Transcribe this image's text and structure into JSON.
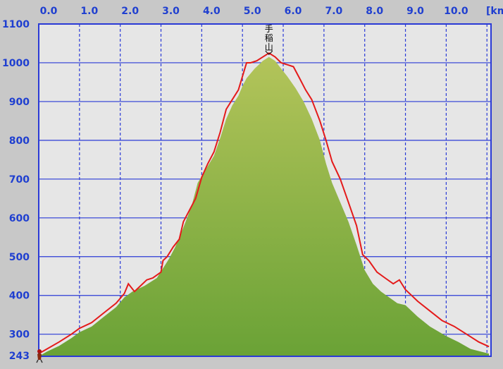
{
  "chart_data": {
    "type": "area",
    "x_unit_label": "[km",
    "xlim": [
      0,
      11.1
    ],
    "ylim": [
      243,
      1100
    ],
    "x_ticks": [
      0.0,
      1.0,
      2.0,
      3.0,
      4.0,
      5.0,
      6.0,
      7.0,
      8.0,
      9.0,
      10.0
    ],
    "x_tick_labels": [
      "0.0",
      "1.0",
      "2.0",
      "3.0",
      "4.0",
      "5.0",
      "6.0",
      "7.0",
      "8.0",
      "9.0",
      "10.0"
    ],
    "y_ticks": [
      1100,
      1000,
      900,
      800,
      700,
      600,
      500,
      400,
      300
    ],
    "y_tick_labels": [
      "1100",
      "1000",
      "900",
      "800",
      "700",
      "600",
      "500",
      "400",
      "300"
    ],
    "y_start_label": "243",
    "grid": true,
    "annotations": [
      {
        "text": "手稲山",
        "x": 5.65,
        "y": 1025
      }
    ],
    "series": [
      {
        "style": "area",
        "color": "#6aa236",
        "x": [
          0.0,
          0.2,
          0.5,
          0.8,
          1.0,
          1.3,
          1.6,
          1.9,
          2.1,
          2.3,
          2.6,
          2.9,
          3.05,
          3.2,
          3.35,
          3.55,
          3.75,
          3.9,
          4.1,
          4.3,
          4.45,
          4.6,
          4.75,
          4.9,
          5.0,
          5.1,
          5.3,
          5.5,
          5.65,
          5.8,
          5.95,
          6.1,
          6.3,
          6.5,
          6.7,
          6.9,
          7.05,
          7.2,
          7.4,
          7.6,
          7.8,
          8.0,
          8.2,
          8.4,
          8.6,
          8.8,
          9.0,
          9.3,
          9.6,
          10.0,
          10.3,
          10.6,
          11.05
        ],
        "y": [
          243,
          255,
          270,
          290,
          305,
          320,
          345,
          370,
          395,
          410,
          425,
          445,
          470,
          495,
          525,
          575,
          630,
          690,
          725,
          760,
          805,
          855,
          890,
          915,
          940,
          960,
          985,
          1005,
          1015,
          1005,
          985,
          965,
          935,
          900,
          855,
          800,
          740,
          690,
          640,
          590,
          530,
          465,
          430,
          410,
          395,
          380,
          375,
          345,
          320,
          295,
          280,
          262,
          250
        ]
      },
      {
        "style": "line",
        "color": "#e41a1a",
        "x": [
          0.0,
          0.2,
          0.5,
          0.8,
          1.0,
          1.3,
          1.6,
          1.9,
          2.1,
          2.2,
          2.35,
          2.5,
          2.65,
          2.8,
          3.0,
          3.05,
          3.15,
          3.3,
          3.45,
          3.55,
          3.7,
          3.85,
          4.0,
          4.15,
          4.3,
          4.45,
          4.6,
          4.75,
          4.9,
          5.0,
          5.1,
          5.2,
          5.35,
          5.5,
          5.65,
          5.8,
          5.95,
          6.1,
          6.25,
          6.4,
          6.55,
          6.7,
          6.9,
          7.05,
          7.2,
          7.4,
          7.6,
          7.8,
          7.95,
          8.1,
          8.3,
          8.5,
          8.7,
          8.85,
          9.0,
          9.15,
          9.3,
          9.6,
          9.9,
          10.2,
          10.5,
          10.8,
          11.05
        ],
        "y": [
          250,
          262,
          280,
          300,
          315,
          330,
          355,
          380,
          405,
          430,
          410,
          425,
          440,
          445,
          460,
          490,
          500,
          525,
          545,
          590,
          620,
          650,
          705,
          740,
          770,
          820,
          880,
          905,
          930,
          965,
          1000,
          1000,
          1005,
          1015,
          1025,
          1015,
          1000,
          995,
          990,
          960,
          930,
          905,
          850,
          800,
          745,
          700,
          640,
          580,
          505,
          490,
          460,
          445,
          430,
          440,
          415,
          400,
          385,
          360,
          335,
          320,
          300,
          280,
          268
        ]
      }
    ]
  }
}
